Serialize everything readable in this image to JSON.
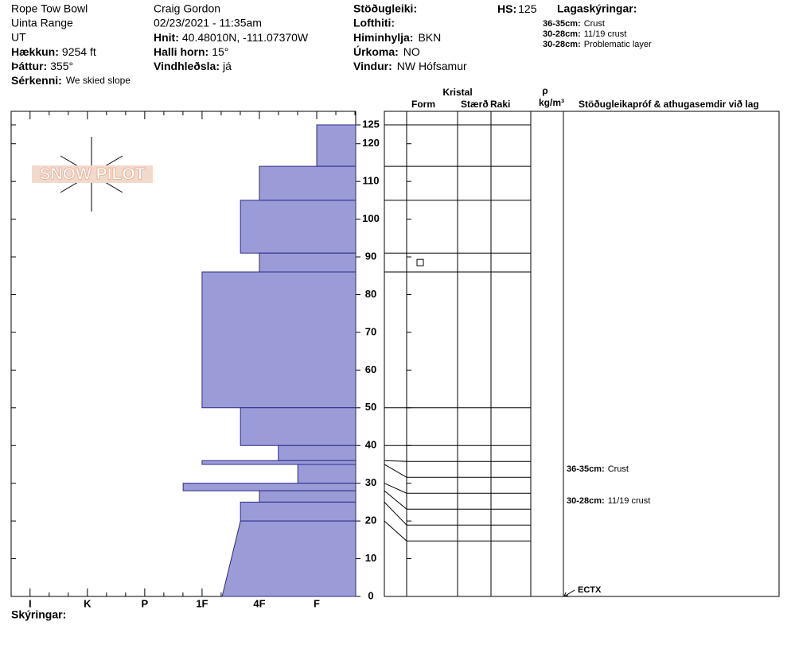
{
  "header": {
    "site": "Rope Tow Bowl",
    "range": "Uinta Range",
    "state": "UT",
    "elevation": {
      "label": "Hækkun:",
      "value": "9254 ft"
    },
    "aspect": {
      "label": "Þáttur:",
      "value": "355°"
    },
    "features": {
      "label": "Sérkenni:",
      "value": "We skied slope"
    },
    "observer": "Craig Gordon",
    "datetime": "02/23/2021 - 11:35am",
    "coords": {
      "label": "Hnit:",
      "value": "40.48010N, -111.07370W"
    },
    "slope": {
      "label": "Halli horn:",
      "value": "15°"
    },
    "wind_loading": {
      "label": "Vindhleðsla:",
      "value": "já"
    },
    "stability": {
      "label": "Stöðugleiki:"
    },
    "air_temp": {
      "label": "Lofthiti:"
    },
    "sky": {
      "label": "Himinhylja:",
      "value": "BKN"
    },
    "precip": {
      "label": "Úrkoma:",
      "value": "NO"
    },
    "wind": {
      "label": "Vindur:",
      "value": "NW Hófsamur"
    },
    "hs": {
      "label": "HS:",
      "value": 125
    }
  },
  "layer_notes": {
    "title": "Lagaskýringar:",
    "items": [
      {
        "range": "36-35cm:",
        "text": "Crust"
      },
      {
        "range": "30-28cm:",
        "text": "11/19 crust"
      },
      {
        "range": "30-28cm:",
        "text": "Problematic layer"
      }
    ]
  },
  "columns": {
    "crystal": "Kristal",
    "form": "Form",
    "size": "Stærð",
    "moisture": "Raki",
    "density_symbol": "ρ",
    "density_unit": "kg/m³",
    "tests": "Stöðugleikapróf & athugasemdir við lag"
  },
  "logo": "SNOW PILOT",
  "comments_label": "Skýringar:",
  "chart_data": {
    "type": "snow-profile",
    "color": "#9b9bd7",
    "ylim": [
      0,
      125
    ],
    "yticks": [
      0,
      10,
      20,
      30,
      40,
      50,
      60,
      70,
      80,
      90,
      100,
      110,
      120,
      125
    ],
    "xlim": [
      6.33,
      0.32
    ],
    "xticks": [
      {
        "value": 6,
        "label": "I"
      },
      {
        "value": 5,
        "label": "K"
      },
      {
        "value": 4,
        "label": "P"
      },
      {
        "value": 3,
        "label": "1F"
      },
      {
        "value": 2,
        "label": "4F"
      },
      {
        "value": 1,
        "label": "F"
      }
    ],
    "layers": [
      {
        "top": 125,
        "bottom": 114,
        "hardness_top": 1,
        "hardness_bottom": 1
      },
      {
        "top": 114,
        "bottom": 105,
        "hardness_top": 2,
        "hardness_bottom": 2
      },
      {
        "top": 105,
        "bottom": 91,
        "hardness_top": 2.33,
        "hardness_bottom": 2.33
      },
      {
        "top": 91,
        "bottom": 86,
        "hardness_top": 2,
        "hardness_bottom": 2,
        "grain_form": "faceted"
      },
      {
        "top": 86,
        "bottom": 50,
        "hardness_top": 3,
        "hardness_bottom": 3
      },
      {
        "top": 50,
        "bottom": 40,
        "hardness_top": 2.33,
        "hardness_bottom": 2.33
      },
      {
        "top": 40,
        "bottom": 36,
        "hardness_top": 1.67,
        "hardness_bottom": 1.67
      },
      {
        "top": 36,
        "bottom": 35,
        "hardness_top": 3,
        "hardness_bottom": 3,
        "comment": {
          "range": "36-35cm:",
          "text": "Crust"
        }
      },
      {
        "top": 35,
        "bottom": 30,
        "hardness_top": 1.33,
        "hardness_bottom": 1.33
      },
      {
        "top": 30,
        "bottom": 28,
        "hardness_top": 3.33,
        "hardness_bottom": 3.33,
        "comment": {
          "range": "30-28cm:",
          "text": "11/19 crust"
        }
      },
      {
        "top": 28,
        "bottom": 25,
        "hardness_top": 2,
        "hardness_bottom": 2
      },
      {
        "top": 25,
        "bottom": 20,
        "hardness_top": 2.33,
        "hardness_bottom": 2.33
      },
      {
        "top": 20,
        "bottom": 0,
        "hardness_top": 2.33,
        "hardness_bottom": 2.65
      }
    ],
    "tests": [
      {
        "depth": 0,
        "result": "ECTX"
      }
    ]
  }
}
